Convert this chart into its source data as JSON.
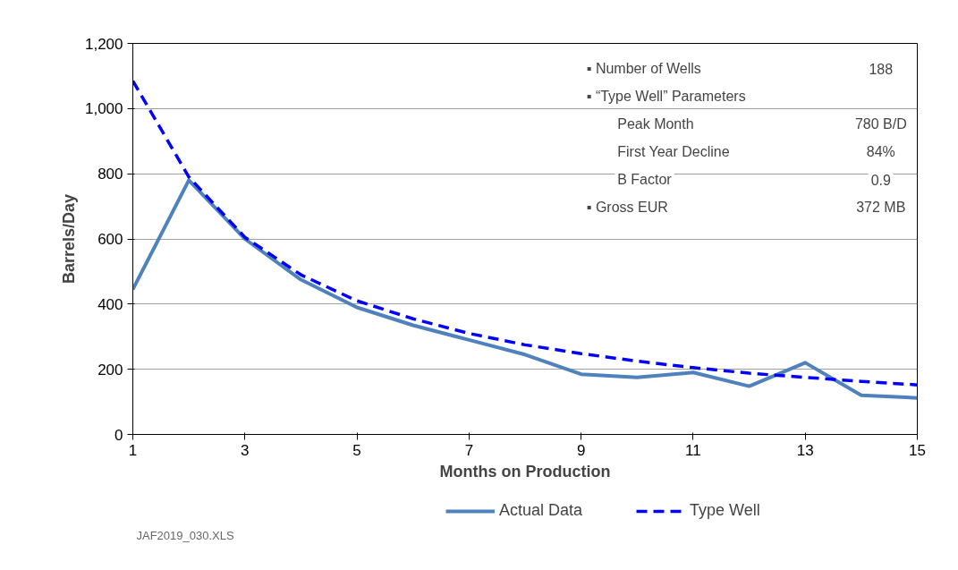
{
  "chart_data": {
    "type": "line",
    "xlabel": "Months on Production",
    "ylabel": "Barrels/Day",
    "x": [
      1,
      2,
      3,
      4,
      5,
      6,
      7,
      8,
      9,
      10,
      11,
      12,
      13,
      14,
      15
    ],
    "series": [
      {
        "name": "Actual Data",
        "color": "#4f81bd",
        "line_style": "solid",
        "values": [
          445,
          780,
          600,
          475,
          390,
          335,
          290,
          245,
          185,
          175,
          190,
          148,
          220,
          120,
          112
        ]
      },
      {
        "name": "Type Well",
        "color": "#0000ff",
        "line_style": "dashed",
        "values": [
          1085,
          790,
          605,
          490,
          410,
          355,
          310,
          275,
          248,
          225,
          205,
          188,
          175,
          163,
          152
        ]
      }
    ],
    "xlim": [
      1,
      15
    ],
    "xticks": [
      1,
      3,
      5,
      7,
      9,
      11,
      13,
      15
    ],
    "ylim": [
      0,
      1200
    ],
    "yticks": [
      0,
      200,
      400,
      600,
      800,
      {
        "value": 1000,
        "label": "1,000"
      },
      {
        "value": 1200,
        "label": "1,200"
      }
    ],
    "grid": "y",
    "legend": "bottom",
    "marker": "none",
    "annotations": [
      "▪  Number of Wells",
      "188",
      "▪  “Type Well” Parameters",
      "Peak Month",
      "780 B/D",
      "First Year Decline",
      "84%",
      "B Factor",
      "0.9",
      "▪ Gross EUR",
      "372 MB",
      "JAF2019_030.XLS"
    ]
  }
}
